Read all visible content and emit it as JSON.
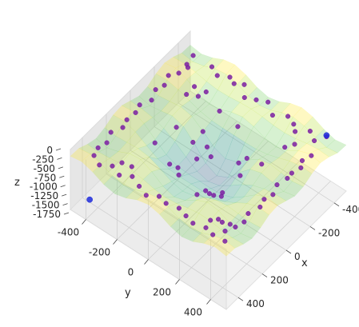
{
  "chart_data": {
    "type": "scatter",
    "projection": "3d",
    "title": "",
    "xlabel": "x",
    "ylabel": "y",
    "zlabel": "z",
    "xlim": [
      -500,
      500
    ],
    "ylim": [
      -500,
      500
    ],
    "zlim": [
      -1750,
      0
    ],
    "xticks": [
      "-400",
      "-200",
      "0",
      "200",
      "400"
    ],
    "yticks": [
      "-400",
      "-200",
      "0",
      "200",
      "400"
    ],
    "zticks": [
      "0",
      "-250",
      "-500",
      "-750",
      "-1000",
      "-1250",
      "-1500",
      "-1750"
    ],
    "grid": true,
    "surface": {
      "colormap": "viridis",
      "alpha": 0.35,
      "description_values": "objective landscape with ridges, z in [-1750, 0]"
    },
    "series": [
      {
        "marker_color": "#7b1fa2",
        "points": [
          [
            -420,
            -420,
            -200
          ],
          [
            -380,
            -430,
            -350
          ],
          [
            -350,
            -400,
            -250
          ],
          [
            -300,
            -420,
            -300
          ],
          [
            -420,
            -300,
            -180
          ],
          [
            -400,
            -250,
            -220
          ],
          [
            -440,
            -200,
            -260
          ],
          [
            -410,
            -150,
            -200
          ],
          [
            -430,
            -100,
            -150
          ],
          [
            -380,
            -60,
            -240
          ],
          [
            -400,
            0,
            -200
          ],
          [
            -420,
            60,
            -160
          ],
          [
            -380,
            120,
            -230
          ],
          [
            -430,
            180,
            -260
          ],
          [
            -400,
            240,
            -210
          ],
          [
            -360,
            280,
            -170
          ],
          [
            -420,
            330,
            -220
          ],
          [
            -390,
            380,
            -250
          ],
          [
            -440,
            420,
            -190
          ],
          [
            -300,
            430,
            -230
          ],
          [
            -250,
            410,
            -260
          ],
          [
            -200,
            440,
            -210
          ],
          [
            -150,
            420,
            -250
          ],
          [
            -100,
            430,
            -200
          ],
          [
            -40,
            410,
            -240
          ],
          [
            20,
            430,
            -260
          ],
          [
            80,
            420,
            -220
          ],
          [
            140,
            440,
            -180
          ],
          [
            200,
            410,
            -250
          ],
          [
            260,
            430,
            -230
          ],
          [
            320,
            420,
            -200
          ],
          [
            380,
            400,
            -170
          ],
          [
            420,
            430,
            -240
          ],
          [
            430,
            360,
            -220
          ],
          [
            410,
            300,
            -260
          ],
          [
            440,
            240,
            -200
          ],
          [
            420,
            180,
            -230
          ],
          [
            400,
            120,
            -250
          ],
          [
            430,
            60,
            -180
          ],
          [
            410,
            0,
            -220
          ],
          [
            440,
            -60,
            -260
          ],
          [
            420,
            -120,
            -240
          ],
          [
            400,
            -180,
            -200
          ],
          [
            430,
            -240,
            -230
          ],
          [
            410,
            -300,
            -210
          ],
          [
            440,
            -360,
            -250
          ],
          [
            420,
            -410,
            -190
          ],
          [
            360,
            -430,
            -230
          ],
          [
            300,
            -420,
            -260
          ],
          [
            240,
            -440,
            -220
          ],
          [
            180,
            -410,
            -200
          ],
          [
            120,
            -430,
            -240
          ],
          [
            60,
            -420,
            -210
          ],
          [
            0,
            -440,
            -250
          ],
          [
            -60,
            -410,
            -230
          ],
          [
            -120,
            -430,
            -190
          ],
          [
            -180,
            -420,
            -240
          ],
          [
            -240,
            -440,
            -220
          ],
          [
            -150,
            -150,
            -700
          ],
          [
            -120,
            -100,
            -900
          ],
          [
            -80,
            -160,
            -800
          ],
          [
            -100,
            -60,
            -1000
          ],
          [
            -60,
            -120,
            -1100
          ],
          [
            150,
            150,
            -650
          ],
          [
            120,
            100,
            -850
          ],
          [
            90,
            160,
            -750
          ],
          [
            100,
            60,
            -950
          ],
          [
            60,
            130,
            -1050
          ],
          [
            -140,
            140,
            -600
          ],
          [
            140,
            -140,
            -620
          ],
          [
            -110,
            110,
            -720
          ],
          [
            110,
            -110,
            -740
          ],
          [
            -300,
            -320,
            -400
          ],
          [
            -280,
            -280,
            -500
          ],
          [
            -320,
            -260,
            -450
          ],
          [
            -260,
            -340,
            -550
          ],
          [
            300,
            320,
            -420
          ],
          [
            280,
            280,
            -520
          ],
          [
            320,
            260,
            -470
          ],
          [
            260,
            340,
            -560
          ],
          [
            -330,
            300,
            -380
          ],
          [
            -300,
            260,
            -480
          ],
          [
            330,
            -300,
            -390
          ],
          [
            300,
            -260,
            -490
          ],
          [
            -220,
            20,
            -300
          ],
          [
            220,
            -20,
            -310
          ],
          [
            20,
            220,
            -320
          ],
          [
            -20,
            -220,
            -330
          ],
          [
            -250,
            -120,
            -360
          ],
          [
            250,
            120,
            -370
          ],
          [
            -120,
            250,
            -380
          ],
          [
            120,
            -250,
            -390
          ]
        ]
      },
      {
        "marker_color": "#1f2bdc",
        "points": [
          [
            -440,
            420,
            -150
          ],
          [
            430,
            -430,
            -1500
          ]
        ]
      }
    ]
  }
}
